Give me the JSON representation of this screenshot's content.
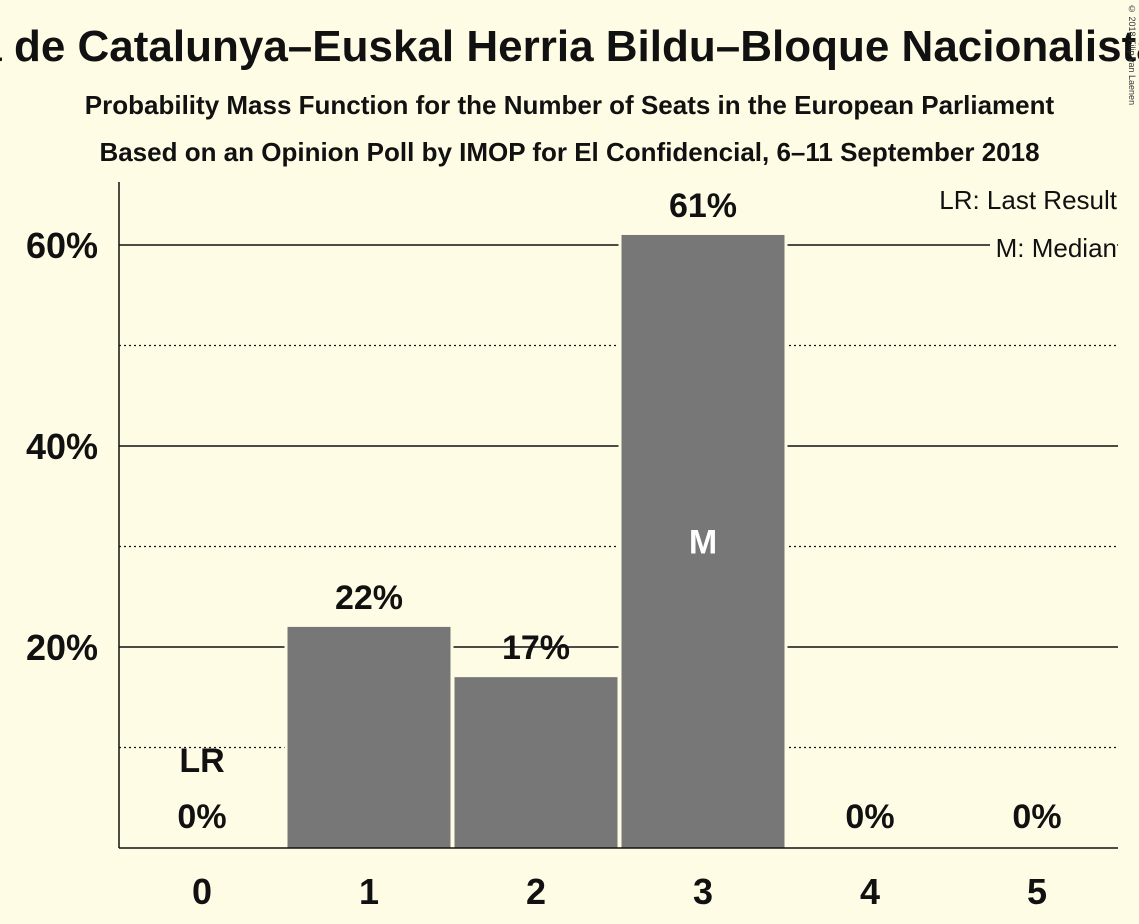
{
  "title": "a de Catalunya–Euskal Herria Bildu–Bloque Nacionalista",
  "subtitle1": "Probability Mass Function for the Number of Seats in the European Parliament",
  "subtitle2": "Based on an Opinion Poll by IMOP for El Confidencial, 6–11 September 2018",
  "copyright": "© 2018 Filip van Laenen",
  "legend": {
    "lr": "LR: Last Result",
    "m": "M: Median"
  },
  "colors": {
    "background": "#FFFCE6",
    "bar": "#777777",
    "text": "#111111"
  },
  "chart_data": {
    "type": "bar",
    "categories": [
      "0",
      "1",
      "2",
      "3",
      "4",
      "5"
    ],
    "values": [
      0,
      22,
      17,
      61,
      0,
      0
    ],
    "value_labels": [
      "0%",
      "22%",
      "17%",
      "61%",
      "0%",
      "0%"
    ],
    "ylim": [
      0,
      66
    ],
    "yticks": [
      20,
      40,
      60
    ],
    "ytick_labels": [
      "20%",
      "40%",
      "60%"
    ],
    "minor_gridlines": [
      10,
      30,
      50
    ],
    "last_result_category": "0",
    "last_result_label": "LR",
    "median_category": "3",
    "median_label": "M",
    "xlabel": "",
    "ylabel": ""
  }
}
